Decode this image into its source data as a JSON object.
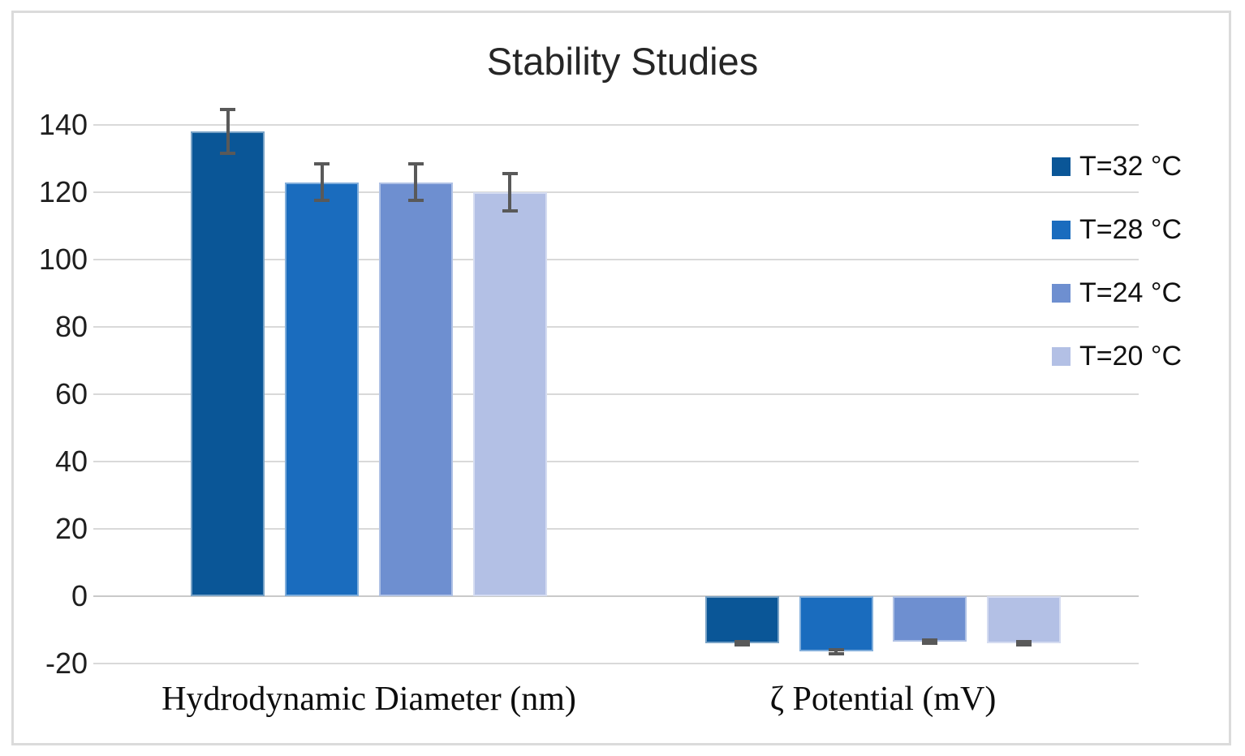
{
  "figure": {
    "title": "Stability Studies"
  },
  "chart_data": {
    "type": "bar",
    "title": "Stability Studies",
    "categories": [
      "Hydrodynamic Diameter (nm)",
      "ζ Potential (mV)"
    ],
    "series": [
      {
        "name": "T=32 °C",
        "color": "#0a5697",
        "values": [
          138,
          -14
        ],
        "errors": [
          7,
          1
        ]
      },
      {
        "name": "T=28 °C",
        "color": "#1a6cbe",
        "values": [
          123,
          -16.5
        ],
        "errors": [
          6,
          1
        ]
      },
      {
        "name": "T=24 °C",
        "color": "#6e8fd0",
        "values": [
          123,
          -13.5
        ],
        "errors": [
          6,
          1
        ]
      },
      {
        "name": "T=20 °C",
        "color": "#b3c0e5",
        "values": [
          120,
          -14
        ],
        "errors": [
          6,
          1
        ]
      }
    ],
    "y_ticks": [
      140,
      120,
      100,
      80,
      60,
      40,
      20,
      0,
      -20
    ],
    "ylim": [
      -20,
      153
    ],
    "xlabel": "",
    "ylabel": "",
    "grid": true,
    "legend_position": "right",
    "gridline_color": "#d9d9d9",
    "error_bar_color": "#595959",
    "frame_border_color": "#dbdbdb"
  }
}
